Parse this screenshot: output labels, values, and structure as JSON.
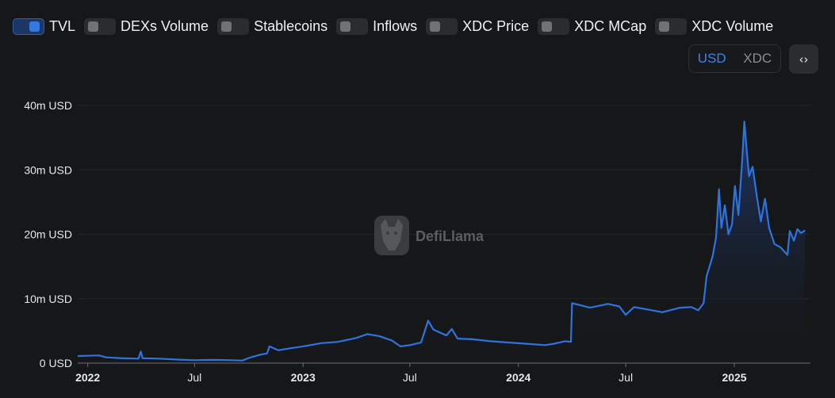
{
  "toggles": [
    {
      "label": "TVL",
      "on": true
    },
    {
      "label": "DEXs Volume",
      "on": false
    },
    {
      "label": "Stablecoins",
      "on": false
    },
    {
      "label": "Inflows",
      "on": false
    },
    {
      "label": "XDC Price",
      "on": false
    },
    {
      "label": "XDC MCap",
      "on": false
    },
    {
      "label": "XDC Volume",
      "on": false
    }
  ],
  "currency": {
    "options": [
      "USD",
      "XDC"
    ],
    "selected": "USD"
  },
  "embed_icon": "code-brackets-icon",
  "watermark": "DefiLlama",
  "colors": {
    "line": "#2e73de",
    "fill_top": "#1e3f7a",
    "background": "#161719"
  },
  "chart_data": {
    "type": "area",
    "title": "",
    "xlabel": "",
    "ylabel": "",
    "grid": true,
    "legend": "none",
    "ylim": [
      0,
      40000000
    ],
    "y_ticks": [
      {
        "value": 0,
        "label": "0 USD"
      },
      {
        "value": 10000000,
        "label": "10m USD"
      },
      {
        "value": 20000000,
        "label": "20m USD"
      },
      {
        "value": 30000000,
        "label": "30m USD"
      },
      {
        "value": 40000000,
        "label": "40m USD"
      }
    ],
    "x_ticks": [
      {
        "date": "2022-01-01",
        "label": "2022",
        "major": true
      },
      {
        "date": "2022-07-01",
        "label": "Jul",
        "major": false
      },
      {
        "date": "2023-01-01",
        "label": "2023",
        "major": true
      },
      {
        "date": "2023-07-01",
        "label": "Jul",
        "major": false
      },
      {
        "date": "2024-01-01",
        "label": "2024",
        "major": true
      },
      {
        "date": "2024-07-01",
        "label": "Jul",
        "major": false
      },
      {
        "date": "2025-01-01",
        "label": "2025",
        "major": true
      }
    ],
    "xlim": [
      "2021-12-15",
      "2025-05-10"
    ],
    "series": [
      {
        "name": "TVL",
        "points": [
          [
            "2021-12-15",
            1100000
          ],
          [
            "2022-01-01",
            1150000
          ],
          [
            "2022-01-20",
            1200000
          ],
          [
            "2022-02-01",
            900000
          ],
          [
            "2022-03-01",
            750000
          ],
          [
            "2022-03-28",
            700000
          ],
          [
            "2022-04-01",
            1800000
          ],
          [
            "2022-04-04",
            750000
          ],
          [
            "2022-05-01",
            700000
          ],
          [
            "2022-06-01",
            550000
          ],
          [
            "2022-07-01",
            450000
          ],
          [
            "2022-08-01",
            500000
          ],
          [
            "2022-09-01",
            450000
          ],
          [
            "2022-09-20",
            400000
          ],
          [
            "2022-10-01",
            800000
          ],
          [
            "2022-10-20",
            1300000
          ],
          [
            "2022-11-01",
            1500000
          ],
          [
            "2022-11-05",
            2600000
          ],
          [
            "2022-11-20",
            2000000
          ],
          [
            "2022-12-10",
            2300000
          ],
          [
            "2023-01-01",
            2600000
          ],
          [
            "2023-02-01",
            3100000
          ],
          [
            "2023-03-01",
            3300000
          ],
          [
            "2023-04-01",
            3900000
          ],
          [
            "2023-04-20",
            4500000
          ],
          [
            "2023-05-10",
            4200000
          ],
          [
            "2023-06-01",
            3500000
          ],
          [
            "2023-06-15",
            2600000
          ],
          [
            "2023-07-01",
            2800000
          ],
          [
            "2023-07-20",
            3200000
          ],
          [
            "2023-07-25",
            4600000
          ],
          [
            "2023-08-01",
            6600000
          ],
          [
            "2023-08-10",
            5200000
          ],
          [
            "2023-09-01",
            4300000
          ],
          [
            "2023-09-10",
            5300000
          ],
          [
            "2023-09-20",
            3800000
          ],
          [
            "2023-10-15",
            3700000
          ],
          [
            "2023-11-15",
            3400000
          ],
          [
            "2023-12-15",
            3200000
          ],
          [
            "2024-01-15",
            3000000
          ],
          [
            "2024-02-15",
            2800000
          ],
          [
            "2024-03-01",
            3000000
          ],
          [
            "2024-03-20",
            3400000
          ],
          [
            "2024-03-30",
            3300000
          ],
          [
            "2024-04-01",
            9300000
          ],
          [
            "2024-04-15",
            9000000
          ],
          [
            "2024-05-01",
            8600000
          ],
          [
            "2024-06-01",
            9200000
          ],
          [
            "2024-06-20",
            8800000
          ],
          [
            "2024-07-01",
            7500000
          ],
          [
            "2024-07-15",
            8700000
          ],
          [
            "2024-08-15",
            8200000
          ],
          [
            "2024-09-01",
            7900000
          ],
          [
            "2024-10-01",
            8600000
          ],
          [
            "2024-10-20",
            8700000
          ],
          [
            "2024-11-01",
            8200000
          ],
          [
            "2024-11-10",
            9300000
          ],
          [
            "2024-11-15",
            13500000
          ],
          [
            "2024-11-25",
            16500000
          ],
          [
            "2024-12-01",
            19500000
          ],
          [
            "2024-12-06",
            27000000
          ],
          [
            "2024-12-10",
            21000000
          ],
          [
            "2024-12-16",
            24500000
          ],
          [
            "2024-12-22",
            20000000
          ],
          [
            "2024-12-28",
            21500000
          ],
          [
            "2025-01-02",
            27500000
          ],
          [
            "2025-01-08",
            23000000
          ],
          [
            "2025-01-14",
            31000000
          ],
          [
            "2025-01-18",
            37500000
          ],
          [
            "2025-01-22",
            33000000
          ],
          [
            "2025-01-26",
            29000000
          ],
          [
            "2025-02-01",
            30500000
          ],
          [
            "2025-02-08",
            26000000
          ],
          [
            "2025-02-15",
            22000000
          ],
          [
            "2025-02-22",
            25500000
          ],
          [
            "2025-03-01",
            21000000
          ],
          [
            "2025-03-10",
            18500000
          ],
          [
            "2025-03-20",
            18000000
          ],
          [
            "2025-04-01",
            16800000
          ],
          [
            "2025-04-05",
            20500000
          ],
          [
            "2025-04-12",
            19000000
          ],
          [
            "2025-04-18",
            20800000
          ],
          [
            "2025-04-24",
            20200000
          ],
          [
            "2025-05-01",
            20600000
          ]
        ]
      }
    ]
  }
}
